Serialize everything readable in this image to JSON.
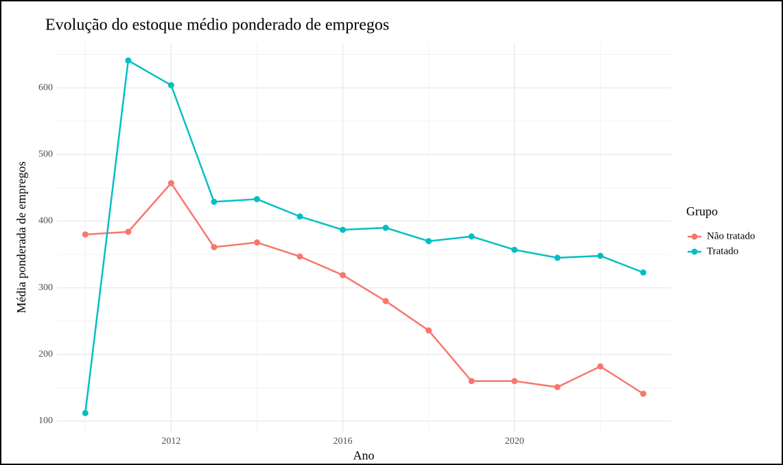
{
  "chart_data": {
    "type": "line",
    "title": "Evolução do estoque médio ponderado de empregos",
    "x_label": "Ano",
    "y_label": "Média ponderada de empregos",
    "legend_title": "Grupo",
    "legend": "right",
    "x": [
      2010,
      2011,
      2012,
      2013,
      2014,
      2015,
      2016,
      2017,
      2018,
      2019,
      2020,
      2021,
      2022,
      2023
    ],
    "series": [
      {
        "name": "Não tratado",
        "color": "#f8766d",
        "values": [
          380,
          384,
          457,
          361,
          368,
          347,
          319,
          280,
          236,
          160,
          160,
          151,
          182,
          141
        ]
      },
      {
        "name": "Tratado",
        "color": "#00bfc4",
        "values": [
          112,
          641,
          604,
          429,
          433,
          407,
          387,
          390,
          370,
          377,
          357,
          345,
          348,
          323
        ]
      }
    ],
    "xlim": [
      2009.34,
      2023.65
    ],
    "xticks": [
      2012,
      2016,
      2020
    ],
    "ylim": [
      83.5,
      668
    ],
    "yticks": [
      100,
      200,
      300,
      400,
      500,
      600
    ],
    "grid": true,
    "minor_grid": true
  }
}
